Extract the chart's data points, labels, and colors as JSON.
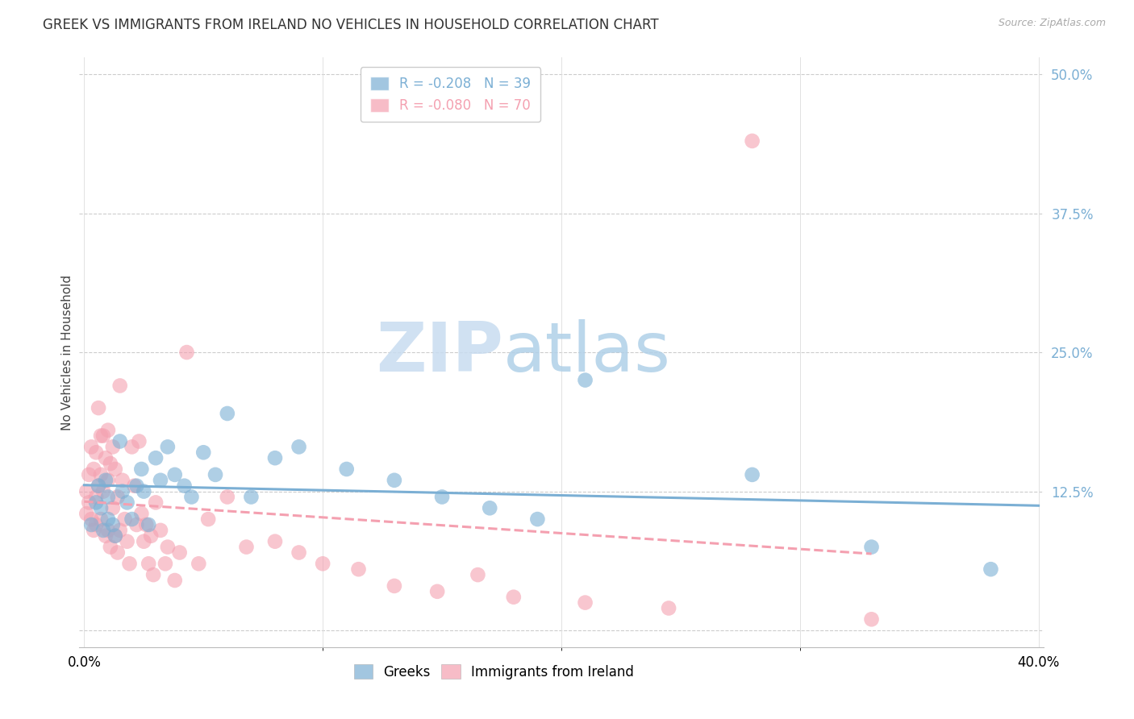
{
  "title": "GREEK VS IMMIGRANTS FROM IRELAND NO VEHICLES IN HOUSEHOLD CORRELATION CHART",
  "source": "Source: ZipAtlas.com",
  "ylabel": "No Vehicles in Household",
  "xlim": [
    -0.002,
    0.402
  ],
  "ylim": [
    -0.015,
    0.515
  ],
  "xticks": [
    0.0,
    0.4
  ],
  "xticklabels": [
    "0.0%",
    "40.0%"
  ],
  "yticks_right": [
    0.125,
    0.25,
    0.375,
    0.5
  ],
  "ytick_labels_right": [
    "12.5%",
    "25.0%",
    "37.5%",
    "50.0%"
  ],
  "legend_r1": "R = -0.208",
  "legend_n1": "N = 39",
  "legend_r2": "R = -0.080",
  "legend_n2": "N = 70",
  "blue_color": "#7BAFD4",
  "pink_color": "#F4A0B0",
  "blue_label": "Greeks",
  "pink_label": "Immigrants from Ireland",
  "watermark_zip": "ZIP",
  "watermark_atlas": "atlas",
  "watermark_color_zip": "#C5DCF0",
  "watermark_color_atlas": "#B8D8F0",
  "title_fontsize": 12,
  "label_fontsize": 11,
  "tick_fontsize": 12,
  "blue_scatter_x": [
    0.003,
    0.005,
    0.006,
    0.007,
    0.008,
    0.009,
    0.01,
    0.01,
    0.012,
    0.013,
    0.015,
    0.016,
    0.018,
    0.02,
    0.022,
    0.024,
    0.025,
    0.027,
    0.03,
    0.032,
    0.035,
    0.038,
    0.042,
    0.045,
    0.05,
    0.055,
    0.06,
    0.07,
    0.08,
    0.09,
    0.11,
    0.13,
    0.15,
    0.17,
    0.19,
    0.21,
    0.28,
    0.33,
    0.38
  ],
  "blue_scatter_y": [
    0.095,
    0.115,
    0.13,
    0.11,
    0.09,
    0.135,
    0.12,
    0.1,
    0.095,
    0.085,
    0.17,
    0.125,
    0.115,
    0.1,
    0.13,
    0.145,
    0.125,
    0.095,
    0.155,
    0.135,
    0.165,
    0.14,
    0.13,
    0.12,
    0.16,
    0.14,
    0.195,
    0.12,
    0.155,
    0.165,
    0.145,
    0.135,
    0.12,
    0.11,
    0.1,
    0.225,
    0.14,
    0.075,
    0.055
  ],
  "pink_scatter_x": [
    0.001,
    0.001,
    0.002,
    0.002,
    0.003,
    0.003,
    0.004,
    0.004,
    0.005,
    0.005,
    0.005,
    0.006,
    0.006,
    0.007,
    0.007,
    0.007,
    0.008,
    0.008,
    0.009,
    0.009,
    0.01,
    0.01,
    0.01,
    0.011,
    0.011,
    0.012,
    0.012,
    0.013,
    0.013,
    0.014,
    0.014,
    0.015,
    0.015,
    0.016,
    0.017,
    0.018,
    0.019,
    0.02,
    0.021,
    0.022,
    0.023,
    0.024,
    0.025,
    0.026,
    0.027,
    0.028,
    0.029,
    0.03,
    0.032,
    0.034,
    0.035,
    0.038,
    0.04,
    0.043,
    0.048,
    0.052,
    0.06,
    0.068,
    0.08,
    0.09,
    0.1,
    0.115,
    0.13,
    0.148,
    0.165,
    0.18,
    0.21,
    0.245,
    0.28,
    0.33
  ],
  "pink_scatter_y": [
    0.125,
    0.105,
    0.14,
    0.115,
    0.165,
    0.1,
    0.145,
    0.09,
    0.16,
    0.12,
    0.095,
    0.2,
    0.13,
    0.175,
    0.14,
    0.1,
    0.175,
    0.125,
    0.155,
    0.085,
    0.18,
    0.135,
    0.09,
    0.15,
    0.075,
    0.165,
    0.11,
    0.085,
    0.145,
    0.12,
    0.07,
    0.22,
    0.09,
    0.135,
    0.1,
    0.08,
    0.06,
    0.165,
    0.13,
    0.095,
    0.17,
    0.105,
    0.08,
    0.095,
    0.06,
    0.085,
    0.05,
    0.115,
    0.09,
    0.06,
    0.075,
    0.045,
    0.07,
    0.25,
    0.06,
    0.1,
    0.12,
    0.075,
    0.08,
    0.07,
    0.06,
    0.055,
    0.04,
    0.035,
    0.05,
    0.03,
    0.025,
    0.02,
    0.44,
    0.01
  ]
}
